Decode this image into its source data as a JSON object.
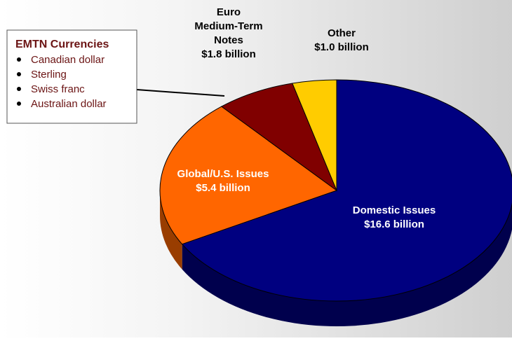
{
  "chart_data": {
    "type": "pie",
    "categories": [
      "Domestic Issues",
      "Global/U.S. Issues",
      "Euro Medium-Term Notes",
      "Other"
    ],
    "values": [
      16.6,
      5.4,
      1.8,
      1.0
    ],
    "value_labels": [
      "$16.6 billion",
      "$5.4 billion",
      "$1.8 billion",
      "$1.0 billion"
    ],
    "colors": [
      "#000080",
      "#ff6600",
      "#800000",
      "#ffcc00"
    ],
    "annotation": {
      "title": "EMTN Currencies",
      "items": [
        "Canadian dollar",
        "Sterling",
        "Swiss franc",
        "Australian dollar"
      ]
    }
  }
}
